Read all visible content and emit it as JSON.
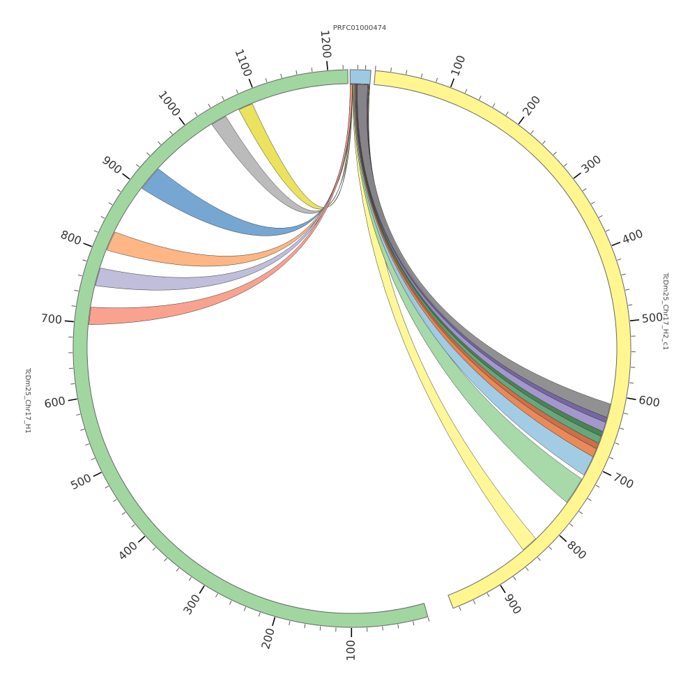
{
  "segments": [
    {
      "id": "prfc",
      "name": "PRFC01000474",
      "length": 27,
      "color": "#9ccae3",
      "reverse": false,
      "tick_labels": []
    },
    {
      "id": "h2",
      "name": "TcDm25_Chr17_H2_c1",
      "length": 968,
      "color": "#fff68f",
      "reverse": false,
      "tick_labels": [
        "100",
        "200",
        "300",
        "400",
        "500",
        "600",
        "700",
        "800",
        "900"
      ]
    },
    {
      "id": "h1",
      "name": "TcDm25_Chr17_H1",
      "length": 1226,
      "color": "#a1d6a1",
      "reverse": true,
      "tick_labels": [
        "100",
        "200",
        "300",
        "400",
        "500",
        "600",
        "700",
        "800",
        "900",
        "1000",
        "1100",
        "1200"
      ]
    }
  ],
  "links": [
    {
      "src": "prfc",
      "s": [
        3,
        27
      ],
      "tgt": "h2",
      "t": [
        825,
        848
      ],
      "color": "#fff68f"
    },
    {
      "src": "prfc",
      "s": [
        4,
        27
      ],
      "tgt": "h2",
      "t": [
        722,
        760
      ],
      "color": "#a1d6a1"
    },
    {
      "src": "prfc",
      "s": [
        5,
        26
      ],
      "tgt": "h2",
      "t": [
        688,
        716
      ],
      "color": "#9ac8e2"
    },
    {
      "src": "prfc",
      "s": [
        6,
        26
      ],
      "tgt": "h2",
      "t": [
        676,
        688
      ],
      "color": "#e8804a"
    },
    {
      "src": "prfc",
      "s": [
        7,
        26
      ],
      "tgt": "h2",
      "t": [
        668,
        676
      ],
      "color": "#c8643a"
    },
    {
      "src": "prfc",
      "s": [
        8,
        25
      ],
      "tgt": "h2",
      "t": [
        658,
        668
      ],
      "color": "#5aa070"
    },
    {
      "src": "prfc",
      "s": [
        8,
        25
      ],
      "tgt": "h2",
      "t": [
        651,
        658
      ],
      "color": "#3b7a47"
    },
    {
      "src": "prfc",
      "s": [
        9,
        25
      ],
      "tgt": "h2",
      "t": [
        638,
        651
      ],
      "color": "#9b8ec8"
    },
    {
      "src": "prfc",
      "s": [
        9,
        24
      ],
      "tgt": "h2",
      "t": [
        631,
        638
      ],
      "color": "#6a5a9a"
    },
    {
      "src": "prfc",
      "s": [
        10,
        24
      ],
      "tgt": "h2",
      "t": [
        612,
        631
      ],
      "color": "#888888"
    },
    {
      "src": "prfc",
      "s": [
        0,
        3
      ],
      "tgt": "h1",
      "t": [
        1072,
        1092
      ],
      "color": "#e9df50"
    },
    {
      "src": "prfc",
      "s": [
        0,
        3
      ],
      "tgt": "h1",
      "t": [
        1030,
        1052
      ],
      "color": "#b5b5b5"
    },
    {
      "src": "prfc",
      "s": [
        0,
        3
      ],
      "tgt": "h1",
      "t": [
        900,
        935
      ],
      "color": "#6a9fcf"
    },
    {
      "src": "prfc",
      "s": [
        0,
        3
      ],
      "tgt": "h1",
      "t": [
        803,
        830
      ],
      "color": "#fdb07a"
    },
    {
      "src": "prfc",
      "s": [
        0,
        3
      ],
      "tgt": "h1",
      "t": [
        752,
        777
      ],
      "color": "#bcb8d9"
    },
    {
      "src": "prfc",
      "s": [
        0,
        3
      ],
      "tgt": "h1",
      "t": [
        698,
        722
      ],
      "color": "#f89a86"
    }
  ]
}
